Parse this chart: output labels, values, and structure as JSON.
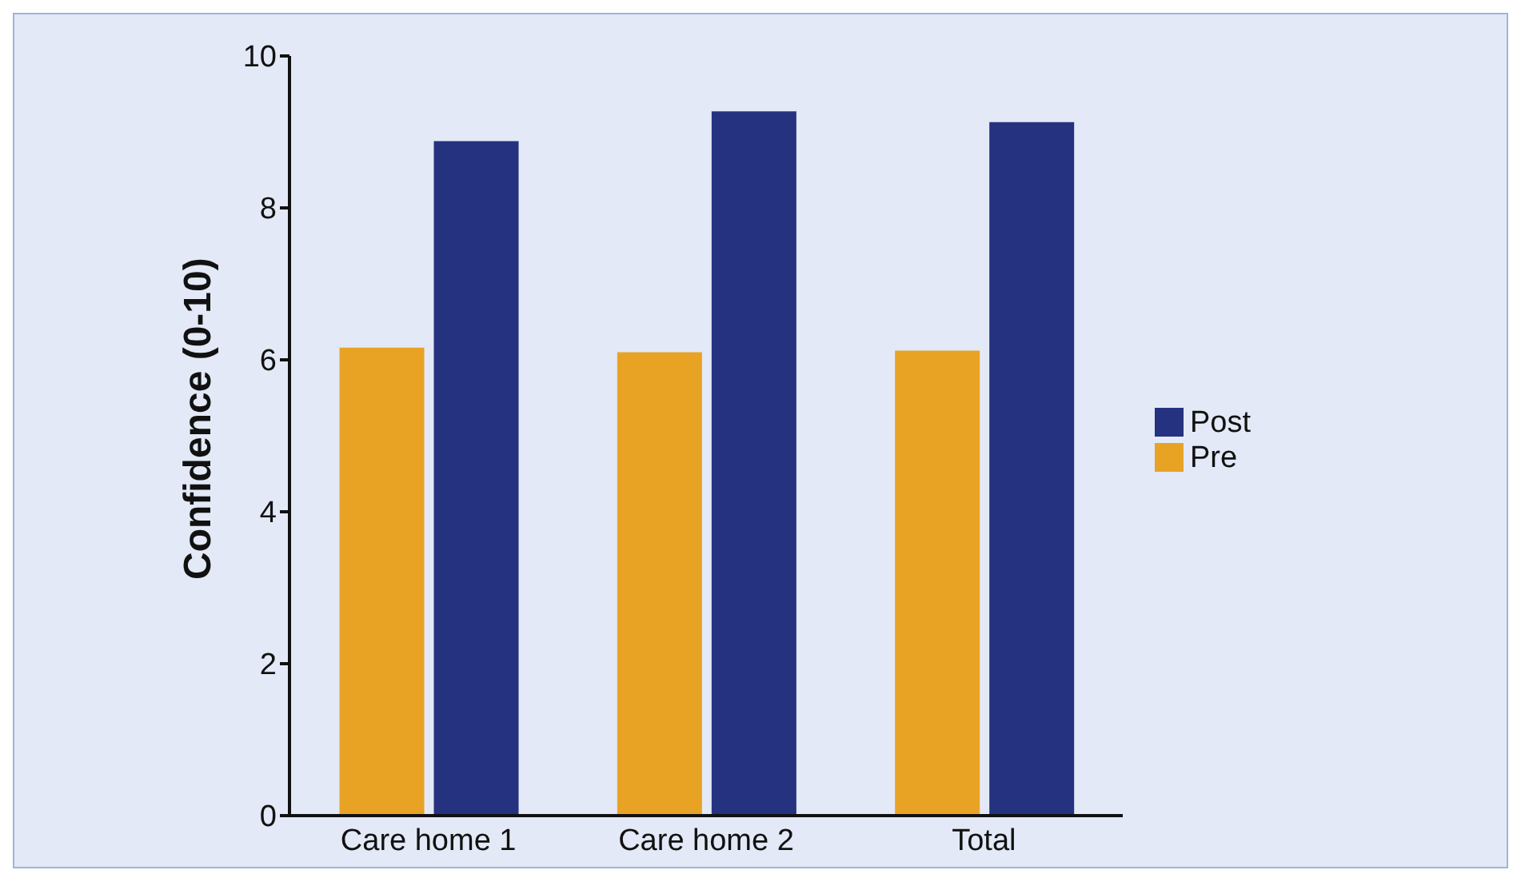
{
  "chart_data": {
    "type": "bar",
    "ylabel": "Confidence (0-10)",
    "categories": [
      "Care home 1",
      "Care home 2",
      "Total"
    ],
    "series": [
      {
        "name": "Pre",
        "color": "#e8a325",
        "values": [
          6.16,
          6.1,
          6.12
        ]
      },
      {
        "name": "Post",
        "color": "#24327f",
        "values": [
          8.88,
          9.27,
          9.13
        ]
      }
    ],
    "ylim": [
      0,
      10
    ],
    "yticks": [
      0,
      2,
      4,
      6,
      8,
      10
    ],
    "grid": false,
    "legend": "right"
  }
}
